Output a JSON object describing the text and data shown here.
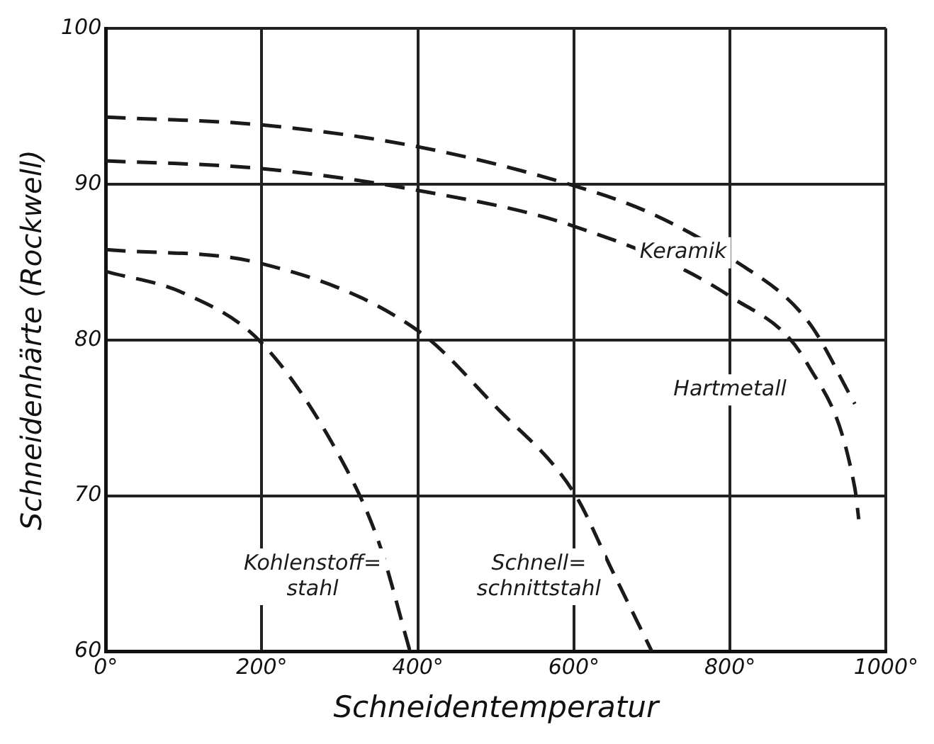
{
  "chart_data": {
    "type": "line",
    "xlabel": "Schneidentemperatur",
    "ylabel": "Schneidenhärte (Rockwell)",
    "xlim": [
      0,
      1000
    ],
    "xticks": [
      {
        "value": 0,
        "label": "0°"
      },
      {
        "value": 200,
        "label": "200°"
      },
      {
        "value": 400,
        "label": "400°"
      },
      {
        "value": 600,
        "label": "600°"
      },
      {
        "value": 800,
        "label": "800°"
      },
      {
        "value": 1000,
        "label": "1000°"
      }
    ],
    "ylim": [
      60,
      100
    ],
    "yticks": [
      60,
      70,
      80,
      90,
      100
    ],
    "grid": true,
    "legend": false,
    "marker": "none",
    "line_style": "dashed",
    "series": [
      {
        "name": "Keramik",
        "color": "#1a1a1a",
        "x": [
          0,
          200,
          400,
          600,
          700,
          800,
          900,
          960
        ],
        "values": [
          94.3,
          93.8,
          92.4,
          89.9,
          88.1,
          85.3,
          81.2,
          75.9
        ]
      },
      {
        "name": "Hartmetall",
        "color": "#1a1a1a",
        "x": [
          0,
          200,
          400,
          600,
          800,
          900,
          960,
          965
        ],
        "values": [
          91.5,
          91.0,
          89.6,
          87.3,
          82.8,
          78.4,
          70.5,
          68.5
        ]
      },
      {
        "name": "Schnell=\nschnittstahl",
        "color": "#1a1a1a",
        "x": [
          0,
          200,
          400,
          500,
          600,
          650,
          700
        ],
        "values": [
          85.8,
          84.9,
          80.6,
          75.7,
          70.2,
          65.1,
          60
        ]
      },
      {
        "name": "Kohlenstoff=\nstahl",
        "color": "#1a1a1a",
        "x": [
          0,
          100,
          200,
          300,
          350,
          390
        ],
        "values": [
          84.4,
          83.0,
          79.8,
          72.5,
          67,
          60
        ]
      }
    ]
  }
}
